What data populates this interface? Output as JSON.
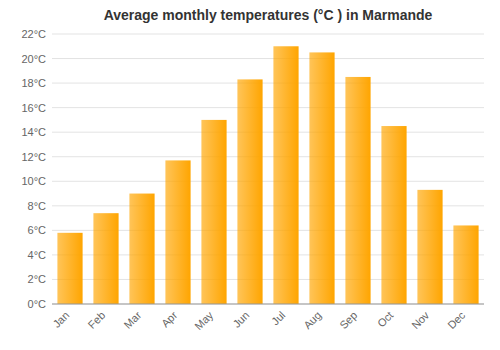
{
  "chart_data": {
    "type": "bar",
    "title": "Average monthly temperatures (°C ) in Marmande",
    "categories": [
      "Jan",
      "Feb",
      "Mar",
      "Apr",
      "May",
      "Jun",
      "Jul",
      "Aug",
      "Sep",
      "Oct",
      "Nov",
      "Dec"
    ],
    "values": [
      5.8,
      7.4,
      9.0,
      11.7,
      15.0,
      18.3,
      21.0,
      20.5,
      18.5,
      14.5,
      9.3,
      6.4
    ],
    "color": "#FFA500",
    "ylim": [
      0,
      22
    ],
    "yticks": [
      {
        "value": 0,
        "label": "0°C"
      },
      {
        "value": 2,
        "label": "2°C"
      },
      {
        "value": 4,
        "label": "4°C"
      },
      {
        "value": 6,
        "label": "6°C"
      },
      {
        "value": 8,
        "label": "8°C"
      },
      {
        "value": 10,
        "label": "10°C"
      },
      {
        "value": 12,
        "label": "12°C"
      },
      {
        "value": 14,
        "label": "14°C"
      },
      {
        "value": 16,
        "label": "16°C"
      },
      {
        "value": 18,
        "label": "18°C"
      },
      {
        "value": 20,
        "label": "20°C"
      },
      {
        "value": 22,
        "label": "22°C"
      }
    ],
    "grid": true
  }
}
